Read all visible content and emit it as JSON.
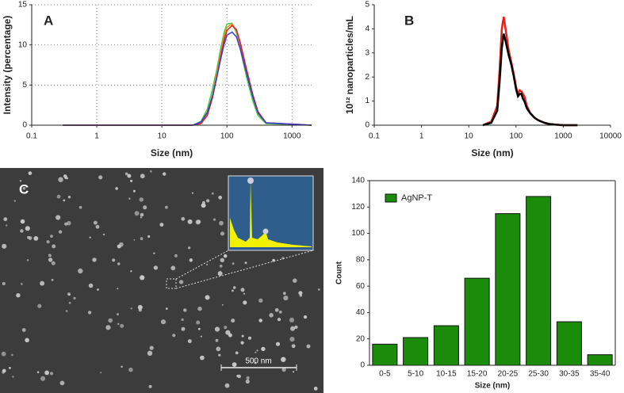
{
  "chart_data": [
    {
      "type": "line",
      "panel_label": "A",
      "x_label": "Size (nm)",
      "y_label": "Intensity (percentage)",
      "log_x": true,
      "grid": true,
      "xlim": [
        0.1,
        2000
      ],
      "ylim": [
        0,
        15
      ],
      "xticks": [
        0.1,
        1,
        10,
        100,
        1000
      ],
      "yticks": [
        0,
        5,
        10,
        15
      ],
      "x": [
        0.3,
        1,
        10,
        30,
        40,
        50,
        60,
        70,
        80,
        90,
        100,
        120,
        140,
        160,
        200,
        250,
        300,
        400,
        2000
      ],
      "series": [
        {
          "color": "#3bd23b",
          "values": [
            0,
            0,
            0,
            0,
            0.5,
            2,
            4.5,
            7,
            9.5,
            11.5,
            12.6,
            12.7,
            11.5,
            9.5,
            6,
            3,
            1.2,
            0.2,
            0
          ]
        },
        {
          "color": "#f08a1c",
          "values": [
            0,
            0,
            0,
            0,
            0.3,
            1.5,
            3.8,
            6.5,
            9,
            11,
            12.2,
            12.6,
            11.8,
            10,
            6.8,
            3.5,
            1.5,
            0.3,
            0
          ]
        },
        {
          "color": "#e02020",
          "values": [
            0,
            0,
            0,
            0,
            0.2,
            1.2,
            3.4,
            6,
            8.5,
            10.5,
            11.8,
            12.4,
            11.9,
            10.3,
            7,
            3.8,
            1.7,
            0.3,
            0
          ]
        },
        {
          "color": "#3a3adf",
          "values": [
            0,
            0,
            0,
            0,
            0.4,
            1.6,
            3.6,
            6,
            8.2,
            10,
            11.2,
            11.6,
            11,
            9.5,
            6.5,
            3.5,
            1.5,
            0.3,
            0
          ]
        }
      ]
    },
    {
      "type": "line",
      "panel_label": "B",
      "x_label": "Size (nm)",
      "y_label": "10¹² nanoparticles/mL",
      "log_x": true,
      "grid": false,
      "xlim": [
        0.1,
        10000
      ],
      "ylim": [
        0,
        5
      ],
      "xticks": [
        0.1,
        1,
        10,
        100,
        1000,
        10000
      ],
      "yticks": [
        0,
        1,
        2,
        3,
        4,
        5
      ],
      "x": [
        20,
        30,
        40,
        45,
        50,
        55,
        60,
        70,
        80,
        90,
        100,
        110,
        120,
        130,
        140,
        150,
        170,
        200,
        250,
        300,
        400,
        500,
        700,
        1000,
        2000
      ],
      "series": [
        {
          "color": "#e8201a",
          "values": [
            0,
            0.15,
            0.8,
            2.3,
            4.0,
            4.5,
            4.0,
            3.1,
            2.6,
            2.1,
            1.6,
            1.3,
            1.45,
            1.4,
            1.3,
            1.2,
            0.8,
            0.5,
            0.3,
            0.2,
            0.1,
            0.05,
            0.02,
            0,
            0
          ]
        },
        {
          "color": "#000000",
          "values": [
            0,
            0.1,
            0.6,
            1.8,
            3.2,
            3.8,
            3.5,
            2.9,
            2.5,
            2.0,
            1.5,
            1.2,
            1.3,
            1.3,
            1.1,
            1.0,
            0.7,
            0.5,
            0.3,
            0.2,
            0.1,
            0.05,
            0.02,
            0,
            0
          ]
        }
      ]
    },
    {
      "type": "bar",
      "x_label": "Size (nm)",
      "y_label": "Count",
      "grid": false,
      "categories": [
        "0-5",
        "5-10",
        "10-15",
        "15-20",
        "20-25",
        "25-30",
        "30-35",
        "35-40"
      ],
      "series": [
        {
          "name": "AgNP-T",
          "color": "#1a8c0a",
          "values": [
            16,
            21,
            30,
            66,
            115,
            128,
            33,
            8
          ]
        }
      ],
      "ylim": [
        0,
        140
      ],
      "yticks": [
        0,
        20,
        40,
        60,
        80,
        100,
        120,
        140
      ],
      "legend": "upper-left"
    }
  ],
  "image_panel": {
    "panel_label": "C",
    "scale_bar": "500 nm"
  }
}
